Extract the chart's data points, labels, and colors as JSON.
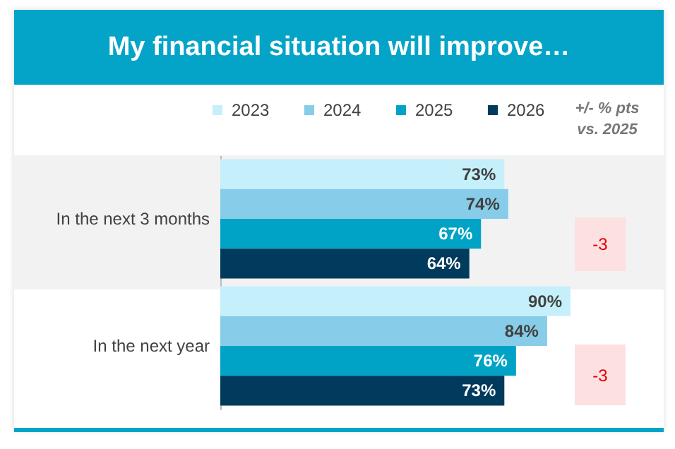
{
  "chart_data": {
    "type": "bar",
    "orientation": "horizontal",
    "title": "My financial situation will improve…",
    "categories": [
      "In the next 3 months",
      "In the next year"
    ],
    "series": [
      {
        "name": "2023",
        "color": "#c5f0fb",
        "values": [
          73,
          90
        ],
        "value_labels": [
          "73%",
          "90%"
        ]
      },
      {
        "name": "2024",
        "color": "#87cde9",
        "values": [
          74,
          84
        ],
        "value_labels": [
          "74%",
          "84%"
        ]
      },
      {
        "name": "2025",
        "color": "#00a3c6",
        "values": [
          67,
          76
        ],
        "value_labels": [
          "67%",
          "76%"
        ]
      },
      {
        "name": "2026",
        "color": "#003a5c",
        "values": [
          64,
          73
        ],
        "value_labels": [
          "64%",
          "73%"
        ]
      }
    ],
    "legend": "top",
    "annotations": [
      "+/- % pts vs. 2025",
      "-3",
      "-3"
    ]
  }
}
